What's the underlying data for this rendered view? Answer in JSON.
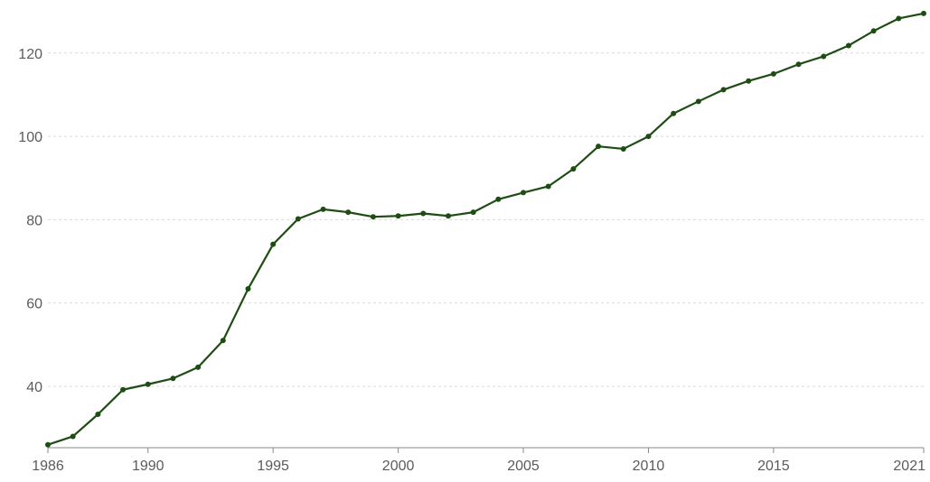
{
  "chart_data": {
    "type": "line",
    "title": "",
    "xlabel": "",
    "ylabel": "",
    "xlim": [
      1986,
      2021
    ],
    "ylim": [
      25.5,
      131
    ],
    "grid": true,
    "legend": "none",
    "colors": {
      "line": "#1e4d14",
      "point": "#1e4d14",
      "grid": "#d9d9d9",
      "axis": "#8a8a8a",
      "tick_text": "#5b5b5b"
    },
    "y_ticks": [
      40,
      60,
      80,
      100,
      120
    ],
    "y_tick_labels": [
      "40",
      "60",
      "80",
      "100",
      "120"
    ],
    "x_ticks": [
      1986,
      1990,
      1995,
      2000,
      2005,
      2010,
      2015,
      2021
    ],
    "x_tick_labels": [
      "1986",
      "1990",
      "1995",
      "2000",
      "2005",
      "2010",
      "2015",
      "2021"
    ],
    "series": [
      {
        "x": [
          1986,
          1987,
          1988,
          1989,
          1990,
          1991,
          1992,
          1993,
          1994,
          1995,
          1996,
          1997,
          1998,
          1999,
          2000,
          2001,
          2002,
          2003,
          2004,
          2005,
          2006,
          2007,
          2008,
          2009,
          2010,
          2011,
          2012,
          2013,
          2014,
          2015,
          2016,
          2017,
          2018,
          2019,
          2020,
          2021
        ],
        "values": [
          26,
          28,
          33.3,
          39.2,
          40.5,
          41.9,
          44.6,
          51,
          63.4,
          74.1,
          80.2,
          82.5,
          81.8,
          80.7,
          80.9,
          81.5,
          80.9,
          81.8,
          84.9,
          86.5,
          88,
          92.2,
          97.6,
          97,
          100,
          105.5,
          108.4,
          111.2,
          113.3,
          115,
          117.3,
          119.2,
          121.8,
          125.3,
          128.3,
          129.5
        ]
      }
    ]
  }
}
